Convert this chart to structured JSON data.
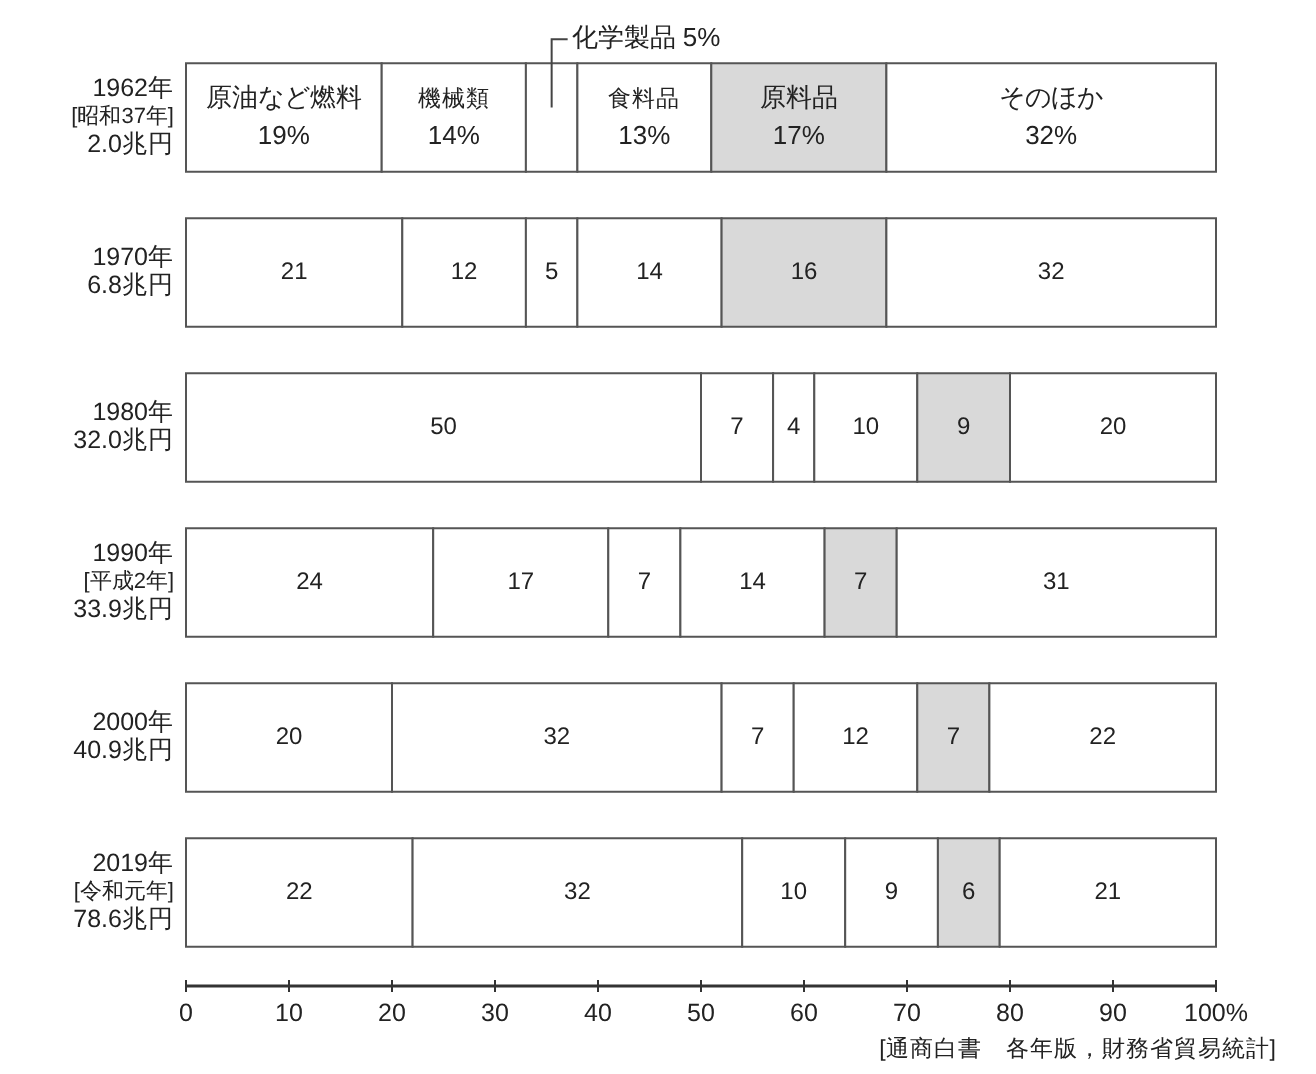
{
  "chart_data": {
    "type": "bar",
    "orientation": "horizontal",
    "stacked": true,
    "categories": [
      "1962年 [昭和37年] 2.0兆円",
      "1970年 6.8兆円",
      "1980年 32.0兆円",
      "1990年 [平成2年] 33.9兆円",
      "2000年 40.9兆円",
      "2019年 [令和元年] 78.6兆円"
    ],
    "series": [
      {
        "name": "原油など燃料",
        "color": "#ffffff",
        "values": [
          19,
          21,
          50,
          24,
          20,
          22
        ],
        "value_labels": [
          "19%",
          "21",
          "50",
          "24",
          "20",
          "22"
        ]
      },
      {
        "name": "機械類",
        "color": "#ffffff",
        "values": [
          14,
          12,
          7,
          17,
          32,
          32
        ],
        "value_labels": [
          "14%",
          "12",
          "7",
          "17",
          "32",
          "32"
        ]
      },
      {
        "name": "化学製品",
        "color": "#ffffff",
        "values": [
          5,
          5,
          4,
          7,
          7,
          10
        ],
        "value_labels": [
          "5%",
          "5",
          "4",
          "7",
          "7",
          "10"
        ]
      },
      {
        "name": "食料品",
        "color": "#ffffff",
        "values": [
          13,
          14,
          10,
          14,
          12,
          9
        ],
        "value_labels": [
          "13%",
          "14",
          "10",
          "14",
          "12",
          "9"
        ]
      },
      {
        "name": "原料品",
        "color": "#d9d9d9",
        "values": [
          17,
          16,
          9,
          7,
          7,
          6
        ],
        "value_labels": [
          "17%",
          "16",
          "9",
          "7",
          "7",
          "6"
        ]
      },
      {
        "name": "そのほか",
        "color": "#ffffff",
        "values": [
          32,
          32,
          20,
          31,
          22,
          21
        ],
        "value_labels": [
          "32%",
          "32",
          "20",
          "31",
          "22",
          "21"
        ]
      }
    ],
    "xlim": [
      0,
      100
    ],
    "xticks": [
      0,
      10,
      20,
      30,
      40,
      50,
      60,
      70,
      80,
      90,
      {
        "value": 100,
        "label": "100%"
      }
    ],
    "annotations": [
      "[通商白書　各年版，財務省貿易統計]"
    ]
  }
}
